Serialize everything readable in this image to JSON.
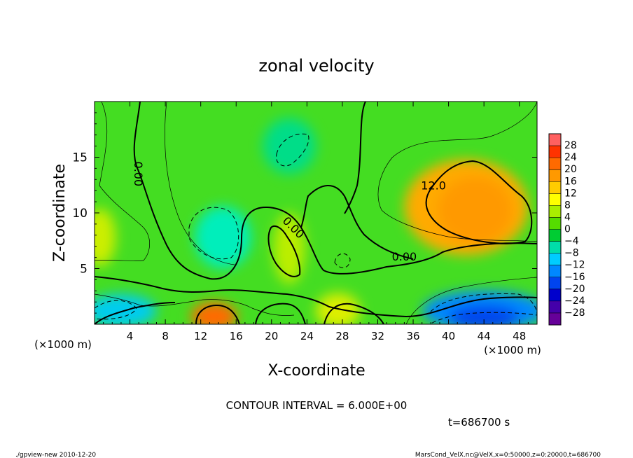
{
  "title": "zonal velocity",
  "chart_data": {
    "type": "heatmap",
    "title": "zonal velocity",
    "xlabel": "X-coordinate",
    "ylabel": "Z-coordinate",
    "x_unit_label": "(×1000 m)",
    "z_unit_label": "(×1000 m)",
    "xlim": [
      0,
      50
    ],
    "ylim": [
      0,
      20
    ],
    "x_ticks": [
      4,
      8,
      12,
      16,
      20,
      24,
      28,
      32,
      36,
      40,
      44,
      48
    ],
    "y_ticks": [
      5,
      10,
      15
    ],
    "colorbar_levels": [
      28,
      24,
      20,
      16,
      12,
      8,
      4,
      0,
      -4,
      -8,
      -12,
      -16,
      -20,
      -24,
      -28
    ],
    "colorbar_colors": [
      "#ff6060",
      "#ff3300",
      "#ff6a00",
      "#ff9900",
      "#ffcc00",
      "#ffff00",
      "#aaee00",
      "#55dd00",
      "#00cc33",
      "#00ddaa",
      "#00ccff",
      "#0088ff",
      "#0044ee",
      "#0000cc",
      "#4400aa",
      "#660099"
    ],
    "contour_labels": [
      {
        "text": "0.00",
        "x": 5,
        "z": 13.5,
        "rotate": 90
      },
      {
        "text": "0.00",
        "x": 22.5,
        "z": 8.7,
        "rotate": 45
      },
      {
        "text": "0.00",
        "x": 35,
        "z": 6.1,
        "rotate": 0
      },
      {
        "text": "12.0",
        "x": 38.3,
        "z": 12.5,
        "rotate": 0
      }
    ],
    "contour_interval_text": "CONTOUR INTERVAL = 6.000E+00",
    "time_text": "t=686700 s",
    "blobs": [
      {
        "x": 42,
        "z": 10.5,
        "rx": 7,
        "rz": 4.3,
        "color": "#ffaa00"
      },
      {
        "x": 43,
        "z": 10.2,
        "rx": 4.2,
        "rz": 3,
        "color": "#ff9900"
      },
      {
        "x": 44,
        "z": 1.2,
        "rx": 7,
        "rz": 1.8,
        "color": "#0088ff"
      },
      {
        "x": 44,
        "z": 0.6,
        "rx": 4,
        "rz": 1.1,
        "color": "#0044ee"
      },
      {
        "x": 3,
        "z": 1.2,
        "rx": 4,
        "rz": 1.5,
        "color": "#00ccee"
      },
      {
        "x": 13.5,
        "z": 0.7,
        "rx": 2.6,
        "rz": 1.3,
        "color": "#ff6a00"
      },
      {
        "x": 14.5,
        "z": 7.8,
        "rx": 3.2,
        "rz": 2.8,
        "color": "#00eebb"
      },
      {
        "x": 22,
        "z": 6.8,
        "rx": 1.8,
        "rz": 3.2,
        "color": "#bbee00"
      },
      {
        "x": 27.5,
        "z": 1.2,
        "rx": 2.5,
        "rz": 1.6,
        "color": "#ddee00"
      },
      {
        "x": 0.6,
        "z": 7.8,
        "rx": 1.8,
        "rz": 2.6,
        "color": "#ccee00"
      },
      {
        "x": 22,
        "z": 16,
        "rx": 3,
        "rz": 2.5,
        "color": "#00dd88"
      }
    ]
  },
  "footer": {
    "left": "./gpview-new  2010-12-20",
    "right": "MarsCond_VelX.nc@VelX,x=0:50000,z=0:20000,t=686700"
  }
}
